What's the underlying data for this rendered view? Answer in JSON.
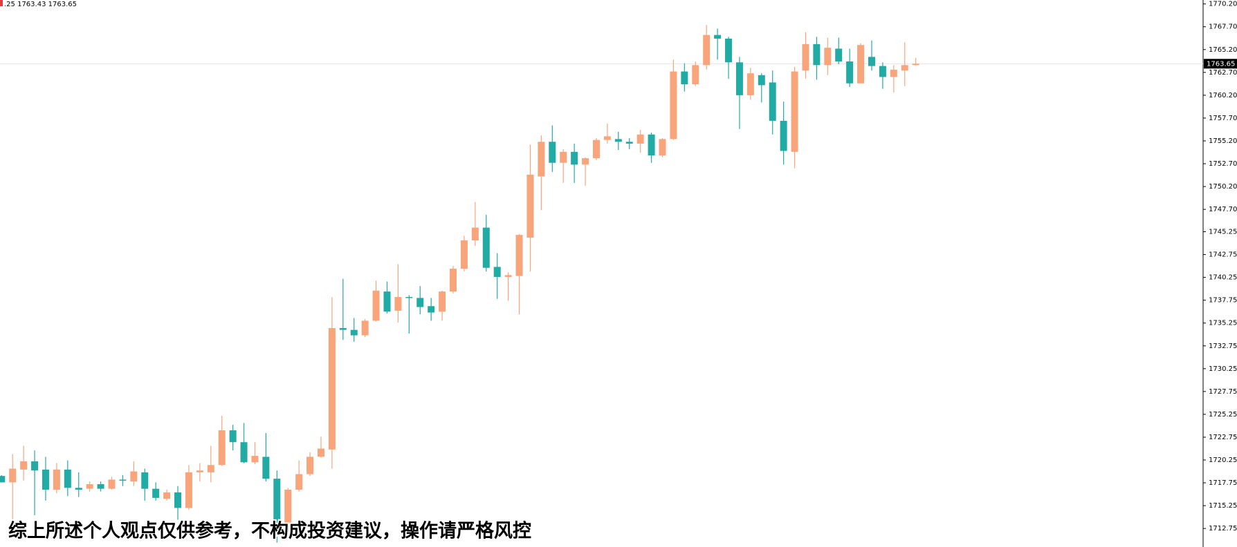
{
  "chart_data": {
    "type": "candlestick",
    "info_text": ".25 1763.43 1763.65",
    "subtitle": "综上所述个人观点仅供参考，不构成投资建议，操作请严格风控",
    "up_color": "#f9a57b",
    "down_color": "#22aaa5",
    "ylim": [
      1710.72,
      1770.63
    ],
    "yticks": [
      {
        "value": 1770.2,
        "label": "1770.20"
      },
      {
        "value": 1767.7,
        "label": "1767.70"
      },
      {
        "value": 1765.2,
        "label": "1765.20"
      },
      {
        "value": 1762.7,
        "label": "1762.70"
      },
      {
        "value": 1760.2,
        "label": "1760.20"
      },
      {
        "value": 1757.7,
        "label": "1757.70"
      },
      {
        "value": 1755.2,
        "label": "1755.20"
      },
      {
        "value": 1752.7,
        "label": "1752.70"
      },
      {
        "value": 1750.2,
        "label": "1750.20"
      },
      {
        "value": 1747.7,
        "label": "1747.70"
      },
      1745.25,
      1742.75,
      1740.25,
      1737.75,
      1735.25,
      1732.75,
      1730.25,
      1727.75,
      1725.25,
      1722.75,
      1720.25,
      1717.75,
      1715.25,
      1712.75
    ],
    "last_price": 1763.65,
    "open": [
      1718.5,
      1717.8,
      1719.2,
      1720.1,
      1719.2,
      1717.0,
      1719.2,
      1717.2,
      1717.1,
      1717.6,
      1717.1,
      1718.1,
      1717.9,
      1718.9,
      1717.1,
      1716.0,
      1716.7,
      1715.0,
      1718.9,
      1718.9,
      1719.7,
      1723.5,
      1722.2,
      1720.0,
      1720.6,
      1718.2,
      1712.4,
      1717.0,
      1718.7,
      1720.6,
      1721.4,
      1734.7,
      1734.5,
      1733.9,
      1735.5,
      1738.7,
      1736.6,
      1738.1,
      1738.0,
      1737.1,
      1736.5,
      1738.7,
      1741.2,
      1744.3,
      1745.7,
      1741.4,
      1740.3,
      1740.4,
      1744.6,
      1751.3,
      1755.1,
      1752.8,
      1754.0,
      1752.6,
      1753.3,
      1755.3,
      1755.4,
      1755.1,
      1754.9,
      1755.9,
      1753.6,
      1755.4,
      1762.8,
      1761.4,
      1763.5,
      1766.8,
      1766.4,
      1763.8,
      1760.2,
      1762.4,
      1761.6,
      1757.4,
      1754.0,
      1762.9,
      1765.8,
      1763.5,
      1765.3,
      1763.9,
      1761.5,
      1764.4,
      1763.4,
      1762.2,
      1762.9,
      1763.5
    ],
    "high": [
      1718.6,
      1720.9,
      1721.8,
      1721.3,
      1720.6,
      1719.9,
      1720.2,
      1718.9,
      1717.9,
      1717.9,
      1718.4,
      1718.6,
      1720.1,
      1719.3,
      1717.8,
      1717.0,
      1717.4,
      1719.7,
      1719.9,
      1721.8,
      1725.1,
      1724.1,
      1724.3,
      1722.2,
      1723.2,
      1719.1,
      1717.2,
      1720.2,
      1721.1,
      1722.8,
      1738.1,
      1740.1,
      1735.8,
      1735.7,
      1739.9,
      1739.8,
      1741.7,
      1738.3,
      1739.3,
      1738.0,
      1738.8,
      1741.5,
      1744.8,
      1748.5,
      1747.1,
      1742.9,
      1740.8,
      1745.0,
      1754.8,
      1755.8,
      1756.9,
      1754.3,
      1754.9,
      1753.4,
      1755.5,
      1757.1,
      1756.2,
      1755.5,
      1756.4,
      1756.1,
      1755.5,
      1764.1,
      1763.7,
      1763.9,
      1767.9,
      1767.5,
      1766.6,
      1764.4,
      1763.2,
      1762.6,
      1762.9,
      1759.5,
      1763.3,
      1767.1,
      1766.6,
      1766.5,
      1766.5,
      1765.3,
      1765.9,
      1766.2,
      1763.8,
      1763.5,
      1766.0,
      1764.3
    ],
    "low": [
      1717.8,
      1713.7,
      1718.0,
      1714.2,
      1715.8,
      1716.6,
      1716.3,
      1716.2,
      1716.8,
      1716.8,
      1717.0,
      1717.4,
      1717.4,
      1715.8,
      1715.8,
      1715.8,
      1713.7,
      1714.8,
      1717.9,
      1717.8,
      1719.6,
      1721.3,
      1719.9,
      1719.8,
      1717.9,
      1711.2,
      1712.2,
      1716.8,
      1718.5,
      1720.5,
      1719.3,
      1733.4,
      1733.2,
      1733.7,
      1735.4,
      1736.3,
      1735.3,
      1734.1,
      1736.2,
      1735.5,
      1735.5,
      1738.5,
      1740.9,
      1743.7,
      1740.9,
      1737.9,
      1737.7,
      1736.2,
      1740.9,
      1747.6,
      1751.8,
      1750.6,
      1750.6,
      1750.3,
      1753.1,
      1754.9,
      1754.2,
      1754.3,
      1753.9,
      1752.8,
      1753.4,
      1755.3,
      1760.6,
      1761.2,
      1763.0,
      1764.1,
      1762.0,
      1756.5,
      1759.7,
      1759.4,
      1755.9,
      1752.6,
      1752.2,
      1762.0,
      1761.9,
      1762.4,
      1763.6,
      1761.1,
      1761.5,
      1762.9,
      1760.9,
      1760.5,
      1761.2,
      1763.43
    ],
    "close": [
      1717.8,
      1719.3,
      1720.1,
      1719.1,
      1717.0,
      1719.2,
      1717.2,
      1717.0,
      1717.6,
      1717.1,
      1718.1,
      1718.0,
      1719.0,
      1717.1,
      1716.1,
      1716.7,
      1715.0,
      1718.9,
      1719.1,
      1719.7,
      1723.5,
      1722.2,
      1720.0,
      1720.7,
      1718.2,
      1712.4,
      1717.0,
      1718.7,
      1720.6,
      1721.5,
      1734.7,
      1734.5,
      1733.9,
      1735.5,
      1738.8,
      1736.5,
      1738.1,
      1738.0,
      1737.0,
      1736.4,
      1738.7,
      1741.2,
      1744.3,
      1745.7,
      1741.3,
      1740.3,
      1740.5,
      1744.9,
      1751.5,
      1755.1,
      1752.8,
      1754.0,
      1752.6,
      1753.3,
      1755.3,
      1755.7,
      1755.1,
      1754.9,
      1755.9,
      1753.6,
      1755.4,
      1762.8,
      1761.4,
      1763.5,
      1766.8,
      1766.4,
      1763.8,
      1760.2,
      1762.6,
      1761.3,
      1757.4,
      1754.1,
      1762.8,
      1765.8,
      1763.5,
      1765.4,
      1763.9,
      1761.5,
      1765.7,
      1763.4,
      1762.2,
      1763.0,
      1763.5,
      1763.65
    ]
  }
}
